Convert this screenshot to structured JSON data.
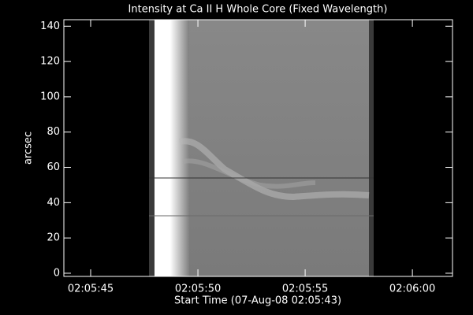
{
  "chart_data": {
    "type": "image",
    "title": "Intensity at Ca II H Whole Core (Fixed Wavelength)",
    "xlabel": "Start Time (07-Aug-08 02:05:43)",
    "ylabel": "arcsec",
    "xlim": [
      0.75,
      18.87
    ],
    "xticks": [
      {
        "value": 2,
        "label": "02:05:45"
      },
      {
        "value": 7,
        "label": "02:05:50"
      },
      {
        "value": 12,
        "label": "02:05:55"
      },
      {
        "value": 17,
        "label": "02:06:00"
      }
    ],
    "ylim": [
      -1.8,
      143.7
    ],
    "yticks": [
      0,
      20,
      40,
      60,
      80,
      100,
      120,
      140
    ]
  }
}
